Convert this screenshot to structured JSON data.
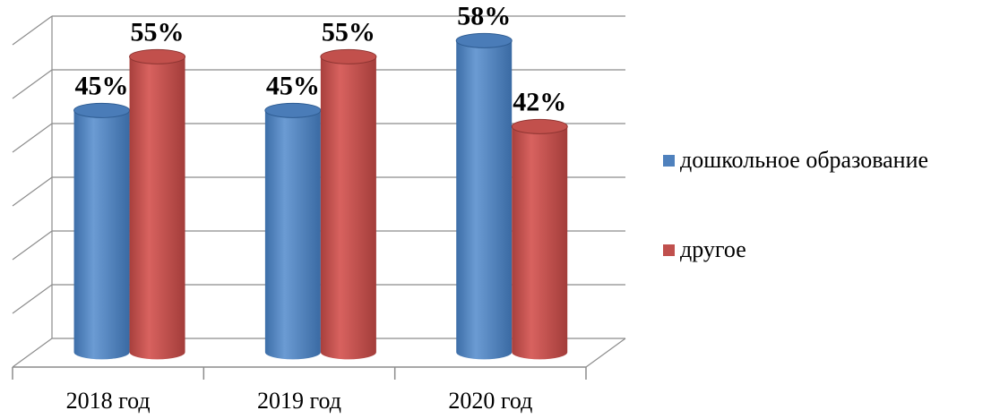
{
  "chart_data": {
    "type": "bar",
    "categories": [
      "2018 год",
      "2019 год",
      "2020 год"
    ],
    "series": [
      {
        "name": "дошкольное образование",
        "color": "#4f81bd",
        "values": [
          45,
          45,
          58
        ]
      },
      {
        "name": "другое",
        "color": "#c0504d",
        "values": [
          55,
          55,
          42
        ]
      }
    ],
    "data_labels": [
      [
        "45%",
        "45%",
        "58%"
      ],
      [
        "55%",
        "55%",
        "42%"
      ]
    ],
    "ylim": [
      0,
      60
    ],
    "grid": true,
    "legend_position": "right",
    "style": "3d-cylinder"
  }
}
